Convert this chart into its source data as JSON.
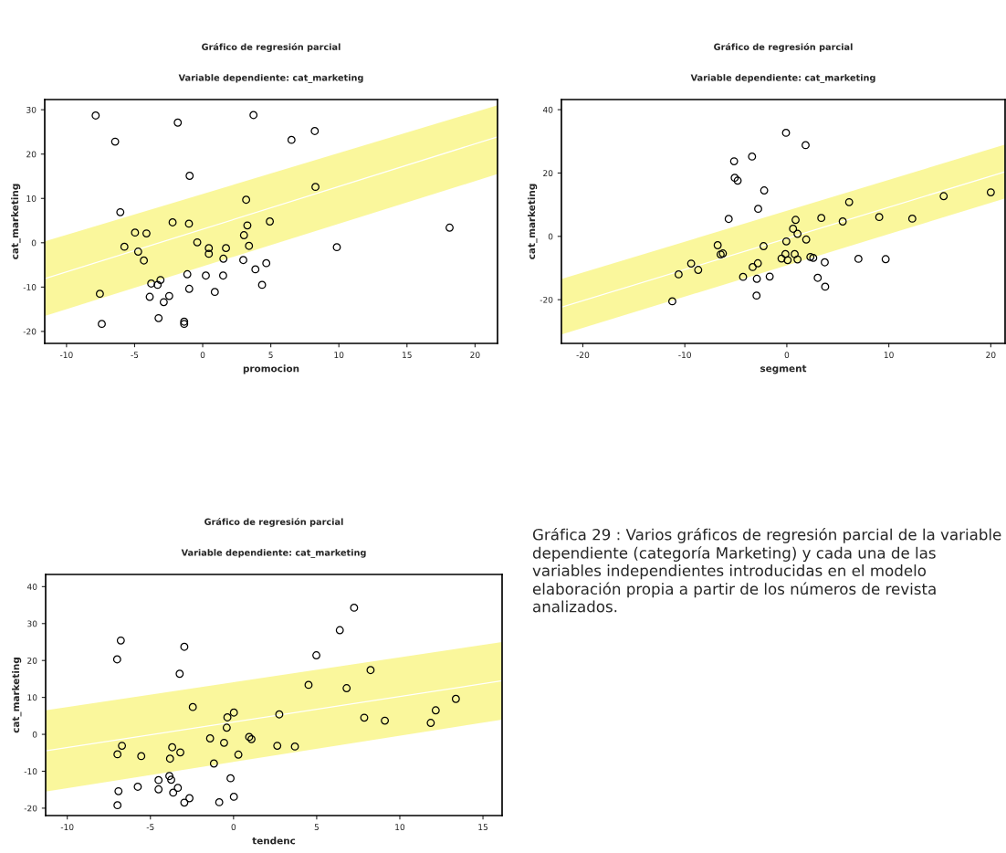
{
  "chart_data": [
    {
      "type": "scatter",
      "title": "Gráfico de regresión parcial",
      "subtitle": "Variable dependiente: cat_marketing",
      "xlabel": "promocion",
      "ylabel": "cat_marketing",
      "xlim": [
        -11.6,
        21.65
      ],
      "ylim": [
        -22.7,
        32.3
      ],
      "xticks": [
        -10,
        -5,
        0,
        5,
        10,
        15,
        20
      ],
      "yticks": [
        -20,
        -10,
        0,
        10,
        20,
        30
      ],
      "grid": false,
      "legend": false,
      "series": [
        {
          "marker": "circle",
          "color": "#000000",
          "x": [
            -7.86,
            -6.43,
            -1.83,
            3.73,
            6.52,
            8.23,
            -0.96,
            8.28,
            3.19,
            -6.05,
            18.13,
            4.93,
            3.28,
            -2.21,
            -1.01,
            -4.97,
            -4.13,
            3.03,
            -0.4,
            -5.75,
            9.85,
            0.45,
            1.71,
            3.4,
            0.45,
            -4.74,
            -4.32,
            1.52,
            2.98,
            4.67,
            3.87,
            -1.13,
            0.23,
            1.5,
            4.36,
            -3.78,
            -3.31,
            -3.1,
            -0.99,
            0.89,
            -7.55,
            -3.89,
            -2.46,
            -2.86,
            -3.24,
            -1.36,
            -1.36,
            -7.41
          ],
          "values": [
            28.7,
            22.8,
            27.1,
            28.8,
            23.2,
            25.2,
            15.1,
            12.6,
            9.7,
            6.9,
            3.4,
            4.8,
            3.9,
            4.6,
            4.3,
            2.3,
            2.1,
            1.7,
            0.1,
            -0.9,
            -1.0,
            -1.2,
            -1.2,
            -0.7,
            -2.5,
            -2.0,
            -4.0,
            -3.6,
            -3.9,
            -4.6,
            -6.0,
            -7.1,
            -7.4,
            -7.4,
            -9.5,
            -9.2,
            -9.5,
            -8.4,
            -10.4,
            -11.1,
            -11.5,
            -12.2,
            -12.0,
            -13.4,
            -17.0,
            -17.8,
            -18.3,
            -18.3
          ]
        },
        {
          "type": "line",
          "color": "#ffffff",
          "line_style": "solid",
          "x": [
            -11.6,
            21.65
          ],
          "values": [
            -8.1,
            23.9
          ],
          "lower": [
            -16.5,
            15.5
          ],
          "upper": [
            0.3,
            31.0
          ]
        }
      ]
    },
    {
      "type": "scatter",
      "title": "Gráfico de regresión parcial",
      "subtitle": "Variable dependiente: cat_marketing",
      "xlabel": "segment",
      "ylabel": "cat_marketing",
      "xlim": [
        -22.1,
        21.4
      ],
      "ylim": [
        -33.8,
        43.2
      ],
      "xticks": [
        -20,
        -10,
        0,
        10,
        20
      ],
      "yticks": [
        -20,
        0,
        20,
        40
      ],
      "grid": false,
      "legend": false,
      "series": [
        {
          "marker": "circle",
          "color": "#000000",
          "x": [
            -0.08,
            1.84,
            -3.41,
            -5.17,
            -5.11,
            -4.82,
            -2.22,
            -2.81,
            -5.7,
            6.11,
            15.38,
            20.0,
            0.86,
            3.38,
            5.48,
            9.06,
            12.3,
            0.61,
            1.05,
            1.9,
            -0.05,
            -2.28,
            -6.78,
            -6.49,
            -6.27,
            -0.14,
            0.77,
            -0.52,
            0.08,
            1.05,
            2.31,
            2.59,
            3.72,
            7.02,
            9.69,
            -2.84,
            -3.35,
            -9.38,
            -8.69,
            -10.61,
            -4.29,
            -2.94,
            -1.68,
            3.03,
            3.76,
            -2.97,
            -11.23
          ],
          "values": [
            32.7,
            28.8,
            25.2,
            23.7,
            18.5,
            17.6,
            14.5,
            8.7,
            5.5,
            10.8,
            12.7,
            13.9,
            5.2,
            5.8,
            4.7,
            6.1,
            5.6,
            2.4,
            0.8,
            -1.0,
            -1.6,
            -3.1,
            -2.8,
            -5.7,
            -5.4,
            -5.6,
            -5.6,
            -7.0,
            -7.5,
            -7.3,
            -6.5,
            -6.8,
            -8.2,
            -7.1,
            -7.2,
            -8.5,
            -9.7,
            -8.6,
            -10.6,
            -12.0,
            -12.8,
            -13.4,
            -12.7,
            -13.1,
            -15.9,
            -18.7,
            -20.5
          ]
        },
        {
          "type": "line",
          "color": "#ffffff",
          "line_style": "solid",
          "x": [
            -22.1,
            21.4
          ],
          "values": [
            -22.4,
            20.4
          ],
          "lower": [
            -31.0,
            12.0
          ],
          "upper": [
            -13.5,
            29.0
          ]
        }
      ]
    },
    {
      "type": "scatter",
      "title": "Gráfico de regresión parcial",
      "subtitle": "Variable dependiente: cat_marketing",
      "xlabel": "tendenc",
      "ylabel": "cat_marketing",
      "xlim": [
        -11.3,
        16.15
      ],
      "ylim": [
        -22.0,
        43.3
      ],
      "xticks": [
        -10,
        -5,
        0,
        5,
        10,
        15
      ],
      "yticks": [
        -20,
        -10,
        0,
        10,
        20,
        30,
        40
      ],
      "grid": false,
      "legend": false,
      "series": [
        {
          "marker": "circle",
          "color": "#000000",
          "x": [
            7.25,
            6.39,
            -6.78,
            -2.96,
            -7.0,
            4.98,
            -3.24,
            8.24,
            4.51,
            6.8,
            -2.45,
            13.37,
            12.16,
            0.02,
            -0.37,
            2.75,
            7.86,
            9.1,
            11.86,
            -0.41,
            -1.41,
            0.94,
            1.08,
            -0.57,
            -6.71,
            -3.69,
            -3.2,
            2.63,
            3.69,
            -6.98,
            -5.55,
            0.29,
            -3.82,
            -1.18,
            -3.86,
            -3.75,
            -4.51,
            -0.18,
            -6.92,
            -5.76,
            -4.51,
            -3.35,
            -3.63,
            -2.65,
            -2.96,
            -0.86,
            0.02,
            -6.98
          ],
          "values": [
            34.3,
            28.2,
            25.4,
            23.7,
            20.3,
            21.4,
            16.4,
            17.4,
            13.4,
            12.5,
            7.4,
            9.6,
            6.5,
            5.9,
            4.6,
            5.4,
            4.5,
            3.7,
            3.1,
            1.8,
            -1.1,
            -0.7,
            -1.3,
            -2.3,
            -3.1,
            -3.5,
            -4.9,
            -3.1,
            -3.3,
            -5.4,
            -5.9,
            -5.5,
            -6.6,
            -7.9,
            -11.3,
            -12.3,
            -12.4,
            -11.9,
            -15.4,
            -14.2,
            -14.9,
            -14.5,
            -15.8,
            -17.3,
            -18.5,
            -18.4,
            -16.9,
            -19.2
          ]
        },
        {
          "type": "line",
          "color": "#ffffff",
          "line_style": "solid",
          "x": [
            -11.3,
            16.15
          ],
          "values": [
            -4.5,
            14.5
          ],
          "lower": [
            -15.5,
            4.0
          ],
          "upper": [
            6.5,
            25.0
          ]
        }
      ],
      "annotations": [
        "Gráfica 29 : Varios gráficos de regresión parcial de la variable dependiente (categoría Marketing) y cada una de las variables independientes introducidas en el modelo  elaboración propia a partir de los números de revista analizados."
      ]
    }
  ]
}
